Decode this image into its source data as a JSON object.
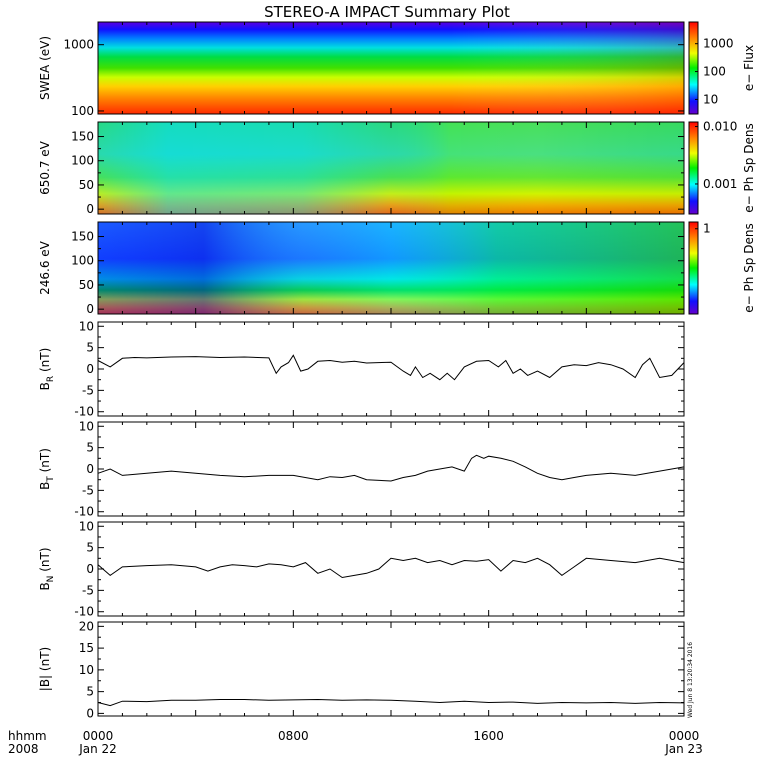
{
  "title": "STEREO-A IMPACT Summary Plot",
  "stamp": "Wed Jun  8 13:20:34 2016",
  "time_axis": {
    "corner_label_top": "hhmm",
    "corner_label_bottom": "2008",
    "ticks": [
      {
        "hhmm": "0000",
        "date": "Jan 22",
        "hour": 0
      },
      {
        "hhmm": "0800",
        "date": "",
        "hour": 8
      },
      {
        "hhmm": "1600",
        "date": "",
        "hour": 16
      },
      {
        "hhmm": "0000",
        "date": "Jan 23",
        "hour": 24
      }
    ]
  },
  "colors": {
    "frame": "#000000",
    "trace": "#000000",
    "background": "#ffffff"
  },
  "chart_data": [
    {
      "type": "heatmap",
      "ylabel": "SWEA (eV)",
      "yscale": "log",
      "ylim": [
        90,
        2200
      ],
      "yticks": [
        {
          "v": 100,
          "label": "100"
        },
        {
          "v": 1000,
          "label": "1000"
        }
      ],
      "colorbar": {
        "label": "e− Flux",
        "scale": "log",
        "range": [
          3,
          6000
        ],
        "ticks": [
          {
            "v": 10,
            "label": "10"
          },
          {
            "v": 100,
            "label": "100"
          },
          {
            "v": 1000,
            "label": "1000"
          }
        ]
      }
    },
    {
      "type": "heatmap",
      "ylabel": "650.7 eV",
      "ylim": [
        -10,
        180
      ],
      "yticks": [
        {
          "v": 0,
          "label": "0"
        },
        {
          "v": 50,
          "label": "50"
        },
        {
          "v": 100,
          "label": "100"
        },
        {
          "v": 150,
          "label": "150"
        }
      ],
      "colorbar": {
        "label": "e− Ph Sp Dens",
        "scale": "log",
        "range": [
          0.0003,
          0.012
        ],
        "ticks": [
          {
            "v": 0.001,
            "label": "0.001"
          },
          {
            "v": 0.01,
            "label": "0.010"
          }
        ]
      }
    },
    {
      "type": "heatmap",
      "ylabel": "246.6 eV",
      "ylim": [
        -10,
        180
      ],
      "yticks": [
        {
          "v": 0,
          "label": "0"
        },
        {
          "v": 50,
          "label": "50"
        },
        {
          "v": 100,
          "label": "100"
        },
        {
          "v": 150,
          "label": "150"
        }
      ],
      "colorbar": {
        "label": "e− Ph Sp Dens",
        "scale": "log",
        "range": [
          0.3,
          1.1
        ],
        "ticks": [
          {
            "v": 1,
            "label": "1"
          }
        ]
      }
    },
    {
      "type": "line",
      "ylabel": "B",
      "ysub": "R",
      "yunit": " (nT)",
      "ylim": [
        -11,
        11
      ],
      "yticks": [
        -10,
        -5,
        0,
        5,
        10
      ],
      "x": [
        0,
        0.5,
        1,
        1.5,
        2,
        3,
        4,
        5,
        6,
        7,
        7.3,
        7.5,
        7.8,
        8,
        8.3,
        8.6,
        9,
        9.5,
        10,
        10.5,
        11,
        12,
        12.5,
        12.8,
        13,
        13.3,
        13.6,
        14,
        14.3,
        14.6,
        15,
        15.5,
        16,
        16.4,
        16.7,
        17,
        17.3,
        17.6,
        18,
        18.5,
        19,
        19.5,
        20,
        20.5,
        21,
        21.5,
        22,
        22.3,
        22.6,
        23,
        23.5,
        24
      ],
      "y": [
        2,
        0.5,
        2.5,
        2.7,
        2.6,
        2.8,
        2.9,
        2.7,
        2.8,
        2.6,
        -1,
        0.5,
        1.5,
        3.2,
        -0.5,
        0,
        1.8,
        2,
        1.6,
        1.8,
        1.4,
        1.6,
        -0.5,
        -1.5,
        0.5,
        -2,
        -1,
        -2.5,
        -1,
        -2.5,
        0.5,
        1.8,
        2,
        0.5,
        2,
        -1,
        0,
        -1.5,
        -0.5,
        -2,
        0.5,
        1,
        0.8,
        1.5,
        1,
        0,
        -2,
        1,
        2.5,
        -2,
        -1.5,
        1.5
      ]
    },
    {
      "type": "line",
      "ylabel": "B",
      "ysub": "T",
      "yunit": " (nT)",
      "ylim": [
        -11,
        11
      ],
      "yticks": [
        -10,
        -5,
        0,
        5,
        10
      ],
      "x": [
        0,
        0.5,
        1,
        2,
        3,
        4,
        5,
        6,
        7,
        8,
        9,
        9.5,
        10,
        10.5,
        11,
        12,
        12.5,
        13,
        13.5,
        14,
        14.5,
        15,
        15.3,
        15.5,
        15.8,
        16,
        16.5,
        17,
        17.5,
        18,
        18.5,
        19,
        19.5,
        20,
        21,
        22,
        23,
        24
      ],
      "y": [
        -1,
        0,
        -1.5,
        -1,
        -0.5,
        -1,
        -1.5,
        -1.8,
        -1.5,
        -1.5,
        -2.5,
        -1.8,
        -2,
        -1.5,
        -2.5,
        -2.8,
        -2,
        -1.5,
        -0.5,
        0,
        0.5,
        -0.5,
        2.5,
        3.2,
        2.5,
        3,
        2.5,
        1.8,
        0.5,
        -1,
        -2,
        -2.5,
        -2,
        -1.5,
        -1,
        -1.5,
        -0.5,
        0.5
      ]
    },
    {
      "type": "line",
      "ylabel": "B",
      "ysub": "N",
      "yunit": " (nT)",
      "ylim": [
        -11,
        11
      ],
      "yticks": [
        -10,
        -5,
        0,
        5,
        10
      ],
      "x": [
        0,
        0.5,
        1,
        2,
        3,
        4,
        4.5,
        5,
        5.5,
        6,
        6.5,
        7,
        7.5,
        8,
        8.5,
        9,
        9.5,
        10,
        10.5,
        11,
        11.5,
        12,
        12.5,
        13,
        13.5,
        14,
        14.5,
        15,
        15.5,
        16,
        16.5,
        17,
        17.5,
        18,
        18.5,
        19,
        19.5,
        20,
        21,
        22,
        23,
        24
      ],
      "y": [
        1,
        -1.5,
        0.5,
        0.8,
        1,
        0.5,
        -0.5,
        0.5,
        1,
        0.8,
        0.5,
        1.2,
        1,
        0.5,
        1.5,
        -1,
        0,
        -2,
        -1.5,
        -1,
        0,
        2.5,
        2,
        2.5,
        1.5,
        2,
        1,
        2,
        1.8,
        2.2,
        -0.5,
        2,
        1.5,
        2.5,
        1,
        -1.5,
        0.5,
        2.5,
        2,
        1.5,
        2.5,
        1.5
      ]
    },
    {
      "type": "line",
      "ylabel": "|B| (nT)",
      "ylim": [
        -0.6,
        21
      ],
      "yticks": [
        0,
        5,
        10,
        15,
        20
      ],
      "x": [
        0,
        0.5,
        1,
        2,
        3,
        4,
        5,
        6,
        7,
        8,
        9,
        10,
        11,
        12,
        13,
        14,
        15,
        16,
        17,
        18,
        19,
        20,
        21,
        22,
        23,
        24
      ],
      "y": [
        2.5,
        1.8,
        2.8,
        2.7,
        3,
        3,
        3.2,
        3.2,
        3,
        3.1,
        3.2,
        3,
        3.1,
        3,
        2.8,
        2.5,
        2.8,
        2.5,
        2.6,
        2.3,
        2.5,
        2.4,
        2.5,
        2.3,
        2.5,
        2.4
      ]
    }
  ]
}
